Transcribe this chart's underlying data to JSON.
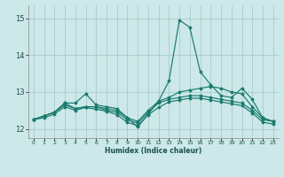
{
  "xlabel": "Humidex (Indice chaleur)",
  "xlim": [
    -0.5,
    23.5
  ],
  "ylim": [
    11.75,
    15.35
  ],
  "background_color": "#cce8e8",
  "grid_color": "#aacccc",
  "line_color": "#1a7a6e",
  "xticks": [
    0,
    1,
    2,
    3,
    4,
    5,
    6,
    7,
    8,
    9,
    10,
    11,
    12,
    13,
    14,
    15,
    16,
    17,
    18,
    19,
    20,
    21,
    22,
    23
  ],
  "yticks": [
    12,
    13,
    14,
    15
  ],
  "series": [
    [
      12.25,
      12.35,
      12.45,
      12.7,
      12.7,
      12.95,
      12.65,
      12.6,
      12.55,
      12.3,
      12.05,
      12.4,
      12.75,
      13.3,
      14.95,
      14.75,
      13.55,
      13.2,
      12.9,
      12.85,
      13.1,
      12.8,
      12.3,
      12.2
    ],
    [
      12.25,
      12.35,
      12.45,
      12.7,
      12.55,
      12.6,
      12.6,
      12.55,
      12.5,
      12.3,
      12.2,
      12.5,
      12.75,
      12.85,
      13.0,
      13.05,
      13.1,
      13.15,
      13.1,
      13.0,
      12.95,
      12.6,
      12.3,
      12.2
    ],
    [
      12.25,
      12.35,
      12.45,
      12.65,
      12.55,
      12.6,
      12.6,
      12.5,
      12.45,
      12.25,
      12.15,
      12.45,
      12.7,
      12.8,
      12.85,
      12.9,
      12.9,
      12.85,
      12.8,
      12.75,
      12.7,
      12.5,
      12.25,
      12.2
    ],
    [
      12.25,
      12.3,
      12.4,
      12.6,
      12.5,
      12.58,
      12.53,
      12.48,
      12.38,
      12.18,
      12.08,
      12.38,
      12.58,
      12.73,
      12.78,
      12.83,
      12.83,
      12.78,
      12.73,
      12.68,
      12.63,
      12.43,
      12.18,
      12.13
    ]
  ]
}
